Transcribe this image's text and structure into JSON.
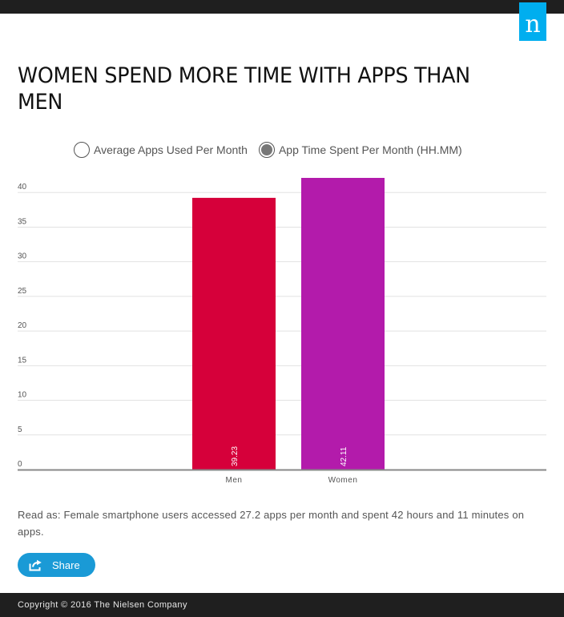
{
  "header": {
    "logo_letter": "n"
  },
  "title": "WOMEN SPEND MORE TIME WITH APPS THAN MEN",
  "toggles": [
    {
      "label": "Average Apps Used Per Month",
      "selected": false
    },
    {
      "label": "App Time Spent Per Month (HH.MM)",
      "selected": true
    }
  ],
  "chart_data": {
    "type": "bar",
    "categories": [
      "Men",
      "Women"
    ],
    "values": [
      39.23,
      42.11
    ],
    "value_labels": [
      "39.23",
      "42.11"
    ],
    "colors": [
      "#d6003a",
      "#b31bab"
    ],
    "yticks": [
      0,
      5,
      10,
      15,
      20,
      25,
      30,
      35,
      40
    ],
    "ylim": [
      0,
      42.11
    ],
    "grid": true,
    "title": "",
    "xlabel": "",
    "ylabel": ""
  },
  "note": "Read as: Female smartphone users accessed 27.2 apps per month and spent 42 hours and 11 minutes on apps.",
  "share_label": "Share",
  "footer": "Copyright © 2016 The Nielsen Company"
}
